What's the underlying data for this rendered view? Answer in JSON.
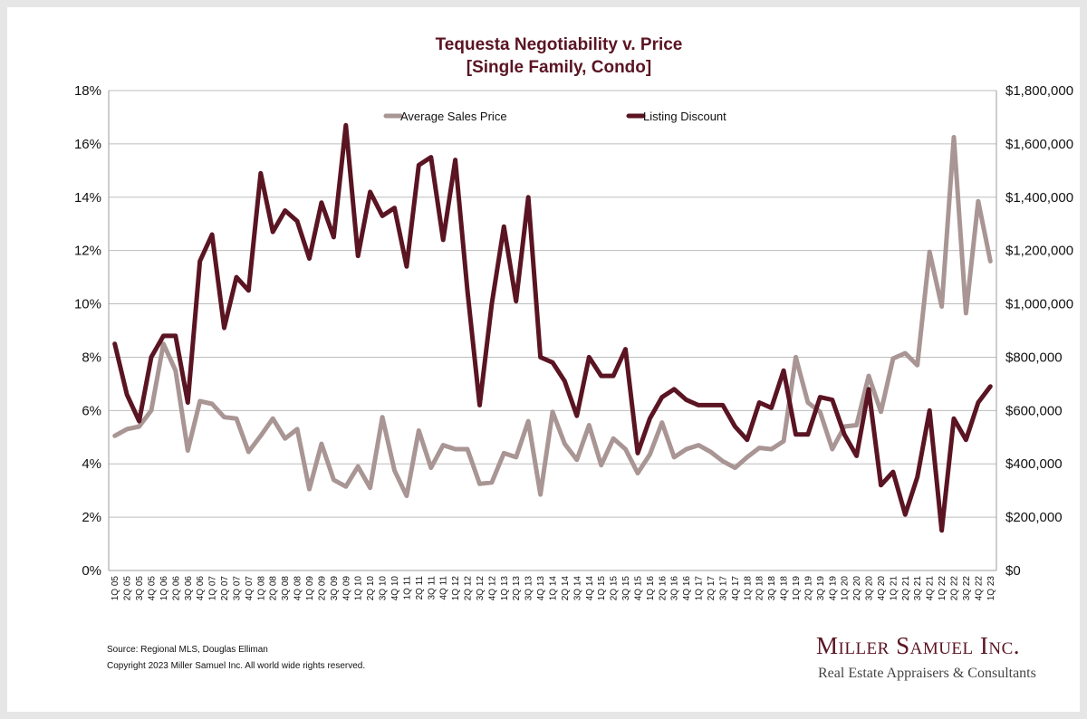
{
  "chart_data": {
    "type": "line",
    "title": "Tequesta Negotiability v. Price",
    "subtitle": "[Single Family, Condo]",
    "xlabel": "",
    "ylabel": "",
    "y2label": "",
    "ylim": [
      0,
      18
    ],
    "y2lim": [
      0,
      1800000
    ],
    "y_ticks": [
      "0%",
      "2%",
      "4%",
      "6%",
      "8%",
      "10%",
      "12%",
      "14%",
      "16%",
      "18%"
    ],
    "y2_ticks": [
      "$0",
      "$200,000",
      "$400,000",
      "$600,000",
      "$800,000",
      "$1,000,000",
      "$1,200,000",
      "$1,400,000",
      "$1,600,000",
      "$1,800,000"
    ],
    "grid": "horizontal",
    "legend_position": "top",
    "categories": [
      "1Q 05",
      "2Q 05",
      "3Q 05",
      "4Q 05",
      "1Q 06",
      "2Q 06",
      "3Q 06",
      "4Q 06",
      "1Q 07",
      "2Q 07",
      "3Q 07",
      "4Q 07",
      "1Q 08",
      "2Q 08",
      "3Q 08",
      "4Q 08",
      "1Q 09",
      "2Q 09",
      "3Q 09",
      "4Q 09",
      "1Q 10",
      "2Q 10",
      "3Q 10",
      "4Q 10",
      "1Q 11",
      "2Q 11",
      "3Q 11",
      "4Q 11",
      "1Q 12",
      "2Q 12",
      "3Q 12",
      "4Q 12",
      "1Q 13",
      "2Q 13",
      "3Q 13",
      "4Q 13",
      "1Q 14",
      "2Q 14",
      "3Q 14",
      "4Q 14",
      "1Q 15",
      "2Q 15",
      "3Q 15",
      "4Q 15",
      "1Q 16",
      "2Q 16",
      "3Q 16",
      "4Q 16",
      "1Q 17",
      "2Q 17",
      "3Q 17",
      "4Q 17",
      "1Q 18",
      "2Q 18",
      "3Q 18",
      "4Q 18",
      "1Q 19",
      "2Q 19",
      "3Q 19",
      "4Q 19",
      "1Q 20",
      "2Q 20",
      "3Q 20",
      "4Q 20",
      "1Q 21",
      "2Q 21",
      "3Q 21",
      "4Q 21",
      "1Q 22",
      "2Q 22",
      "3Q 22",
      "4Q 22",
      "1Q 23"
    ],
    "series": [
      {
        "name": "Average Sales Price",
        "axis": "right",
        "color": "#a89594",
        "values": [
          505000,
          530000,
          540000,
          600000,
          850000,
          750000,
          450000,
          635000,
          625000,
          575000,
          570000,
          445000,
          505000,
          570000,
          495000,
          530000,
          305000,
          475000,
          340000,
          315000,
          390000,
          310000,
          575000,
          375000,
          280000,
          525000,
          385000,
          470000,
          455000,
          455000,
          325000,
          330000,
          440000,
          425000,
          560000,
          285000,
          595000,
          475000,
          415000,
          545000,
          395000,
          495000,
          455000,
          365000,
          435000,
          555000,
          425000,
          455000,
          470000,
          445000,
          410000,
          385000,
          425000,
          460000,
          455000,
          485000,
          800000,
          630000,
          595000,
          455000,
          540000,
          545000,
          730000,
          595000,
          795000,
          815000,
          770000,
          1195000,
          990000,
          1625000,
          965000,
          1385000,
          1160000
        ]
      },
      {
        "name": "Listing Discount",
        "axis": "left",
        "color": "#5a1422",
        "values": [
          8.5,
          6.6,
          5.6,
          8.0,
          8.8,
          8.8,
          6.3,
          11.6,
          12.6,
          9.1,
          11.0,
          10.5,
          14.9,
          12.7,
          13.5,
          13.1,
          11.7,
          13.8,
          12.5,
          16.7,
          11.8,
          14.2,
          13.3,
          13.6,
          11.4,
          15.2,
          15.5,
          12.4,
          15.4,
          10.5,
          6.2,
          10.0,
          12.9,
          10.1,
          14.0,
          8.0,
          7.8,
          7.1,
          5.8,
          8.0,
          7.3,
          7.3,
          8.3,
          4.4,
          5.7,
          6.5,
          6.8,
          6.4,
          6.2,
          6.2,
          6.2,
          5.4,
          4.9,
          6.3,
          6.1,
          7.5,
          5.1,
          5.1,
          6.5,
          6.4,
          5.1,
          4.3,
          6.8,
          3.2,
          3.7,
          2.1,
          3.5,
          6.0,
          1.5,
          5.7,
          4.9,
          6.3,
          6.9
        ]
      }
    ]
  },
  "footer": {
    "source": "Source: Regional MLS, Douglas Elliman",
    "copyright": "Copyright 2023 Miller Samuel Inc.  All world wide rights reserved."
  },
  "brand": {
    "name": "Miller Samuel Inc.",
    "tagline": "Real Estate Appraisers & Consultants"
  }
}
